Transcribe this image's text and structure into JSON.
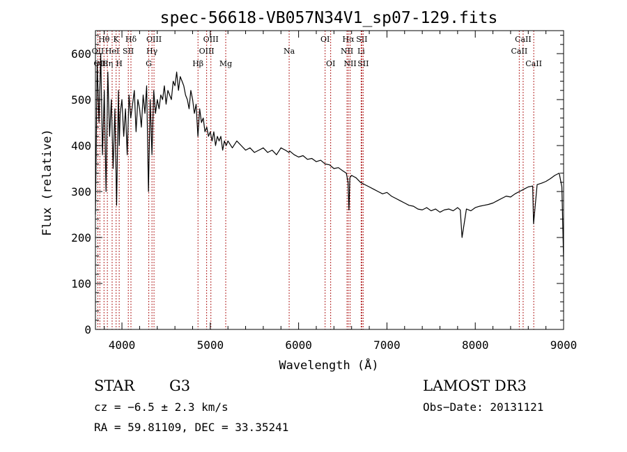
{
  "chart_data": {
    "type": "line",
    "title": "spec-56618-VB057N34V1_sp07-129.fits",
    "xlabel": "Wavelength (Å)",
    "ylabel": "Flux (relative)",
    "xlim": [
      3700,
      9000
    ],
    "ylim": [
      0,
      650
    ],
    "x_ticks": [
      4000,
      5000,
      6000,
      7000,
      8000,
      9000
    ],
    "x_tick_labels": [
      "4000",
      "5000",
      "6000",
      "7000",
      "8000",
      "9000"
    ],
    "y_ticks": [
      0,
      100,
      200,
      300,
      400,
      500,
      600
    ],
    "y_tick_labels": [
      "0",
      "100",
      "200",
      "300",
      "400",
      "500",
      "600"
    ],
    "grid": false,
    "series": [
      {
        "name": "spectrum",
        "color": "#000000",
        "x": [
          3700,
          3720,
          3740,
          3760,
          3780,
          3800,
          3820,
          3840,
          3860,
          3880,
          3900,
          3920,
          3940,
          3960,
          3970,
          3980,
          4000,
          4020,
          4040,
          4060,
          4080,
          4100,
          4120,
          4140,
          4160,
          4180,
          4200,
          4220,
          4240,
          4260,
          4280,
          4300,
          4320,
          4340,
          4360,
          4380,
          4400,
          4420,
          4440,
          4460,
          4480,
          4500,
          4520,
          4540,
          4560,
          4580,
          4600,
          4620,
          4640,
          4660,
          4680,
          4700,
          4720,
          4740,
          4760,
          4780,
          4800,
          4820,
          4840,
          4860,
          4880,
          4900,
          4920,
          4940,
          4960,
          4980,
          5000,
          5020,
          5040,
          5060,
          5080,
          5100,
          5120,
          5140,
          5160,
          5180,
          5200,
          5250,
          5300,
          5350,
          5400,
          5450,
          5500,
          5550,
          5600,
          5650,
          5700,
          5750,
          5800,
          5850,
          5890,
          5900,
          5950,
          6000,
          6050,
          6100,
          6150,
          6200,
          6250,
          6300,
          6350,
          6400,
          6450,
          6500,
          6540,
          6560,
          6570,
          6580,
          6600,
          6650,
          6700,
          6750,
          6800,
          6850,
          6900,
          6950,
          7000,
          7050,
          7100,
          7150,
          7200,
          7250,
          7300,
          7350,
          7400,
          7450,
          7500,
          7550,
          7600,
          7650,
          7700,
          7750,
          7800,
          7830,
          7850,
          7900,
          7950,
          8000,
          8050,
          8100,
          8150,
          8200,
          8250,
          8300,
          8350,
          8400,
          8450,
          8500,
          8550,
          8600,
          8650,
          8660,
          8700,
          8750,
          8800,
          8850,
          8900,
          8950,
          8980,
          9000
        ],
        "values": [
          250,
          580,
          450,
          600,
          380,
          520,
          300,
          560,
          420,
          500,
          350,
          480,
          270,
          520,
          400,
          470,
          500,
          420,
          480,
          380,
          510,
          460,
          490,
          520,
          430,
          500,
          480,
          440,
          510,
          470,
          530,
          300,
          500,
          380,
          520,
          470,
          500,
          480,
          510,
          500,
          530,
          490,
          520,
          510,
          500,
          540,
          530,
          560,
          520,
          550,
          540,
          530,
          510,
          500,
          480,
          520,
          500,
          470,
          490,
          420,
          480,
          450,
          460,
          430,
          440,
          420,
          430,
          410,
          430,
          400,
          420,
          410,
          420,
          390,
          410,
          400,
          410,
          395,
          410,
          400,
          390,
          395,
          385,
          390,
          395,
          385,
          390,
          380,
          395,
          390,
          385,
          388,
          380,
          375,
          378,
          370,
          372,
          365,
          368,
          360,
          358,
          350,
          352,
          345,
          340,
          320,
          260,
          330,
          335,
          330,
          320,
          315,
          310,
          305,
          300,
          295,
          298,
          290,
          285,
          280,
          275,
          270,
          268,
          262,
          260,
          265,
          258,
          262,
          255,
          260,
          262,
          258,
          265,
          260,
          200,
          262,
          258,
          265,
          268,
          270,
          272,
          275,
          280,
          285,
          290,
          288,
          295,
          300,
          305,
          310,
          312,
          230,
          315,
          318,
          322,
          328,
          335,
          340,
          310,
          150
        ]
      }
    ],
    "line_annotations": [
      {
        "label": "Hθ",
        "wavelength": 3797,
        "row": 0
      },
      {
        "label": "K",
        "wavelength": 3934,
        "row": 0
      },
      {
        "label": "Hδ",
        "wavelength": 4102,
        "row": 0
      },
      {
        "label": "OIII",
        "wavelength": 4363,
        "row": 0
      },
      {
        "label": "OIII",
        "wavelength": 5007,
        "row": 0
      },
      {
        "label": "OI",
        "wavelength": 6300,
        "row": 0
      },
      {
        "label": "Hα",
        "wavelength": 6563,
        "row": 0
      },
      {
        "label": "SII",
        "wavelength": 6716,
        "row": 0
      },
      {
        "label": "CaII",
        "wavelength": 8542,
        "row": 0
      },
      {
        "label": "OII",
        "wavelength": 3727,
        "row": 1
      },
      {
        "label": "HeI",
        "wavelength": 3889,
        "row": 1
      },
      {
        "label": "SII",
        "wavelength": 4072,
        "row": 1
      },
      {
        "label": "Hγ",
        "wavelength": 4340,
        "row": 1
      },
      {
        "label": "OIII",
        "wavelength": 4959,
        "row": 1
      },
      {
        "label": "Na",
        "wavelength": 5893,
        "row": 1
      },
      {
        "label": "NII",
        "wavelength": 6548,
        "row": 1
      },
      {
        "label": "Li",
        "wavelength": 6708,
        "row": 1
      },
      {
        "label": "CaII",
        "wavelength": 8498,
        "row": 1
      },
      {
        "label": "OII",
        "wavelength": 3750,
        "row": 2
      },
      {
        "label": "Hη",
        "wavelength": 3835,
        "row": 2
      },
      {
        "label": "H",
        "wavelength": 3969,
        "row": 2
      },
      {
        "label": "G",
        "wavelength": 4304,
        "row": 2
      },
      {
        "label": "Hβ",
        "wavelength": 4861,
        "row": 2
      },
      {
        "label": "Mg",
        "wavelength": 5175,
        "row": 2
      },
      {
        "label": "OI",
        "wavelength": 6363,
        "row": 2
      },
      {
        "label": "NII",
        "wavelength": 6583,
        "row": 2
      },
      {
        "label": "SII",
        "wavelength": 6731,
        "row": 2
      },
      {
        "label": "CaII",
        "wavelength": 8662,
        "row": 2
      }
    ],
    "annotation_line_color": "#b22222"
  },
  "info": {
    "object_class": "STAR",
    "subclass": "G3",
    "velocity": "cz = −6.5 ± 2.3 km/s",
    "coordinates": "RA =  59.81109, DEC =  33.35241",
    "survey": "LAMOST DR3",
    "obs_date": "Obs−Date: 20131121"
  }
}
